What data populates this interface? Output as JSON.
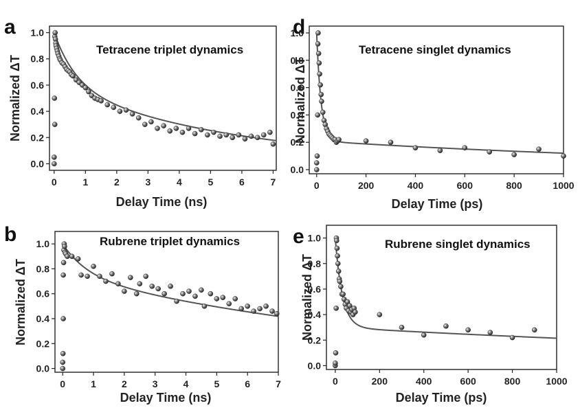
{
  "figure": {
    "colors": {
      "axis": "#222222",
      "fit": "#555555",
      "dot": "#333333",
      "dot_highlight": "#e8e8e8"
    }
  },
  "chart_data": [
    {
      "panel": "a",
      "type": "scatter",
      "annotation": "Tetracene triplet dynamics",
      "xlabel": "Delay Time (ns)",
      "ylabel": "Normalized ΔT",
      "xlim": [
        -0.15,
        7.1
      ],
      "ylim": [
        -0.05,
        1.05
      ],
      "xticks": [
        0,
        1,
        2,
        3,
        4,
        5,
        6,
        7
      ],
      "yticks": [
        0.0,
        0.2,
        0.4,
        0.6,
        0.8,
        1.0
      ],
      "fit": {
        "model": "biexp",
        "a1": 0.4,
        "t1": 0.7,
        "a2": 0.6,
        "t2": 5.8
      },
      "points": [
        [
          0.0,
          0.0
        ],
        [
          0.0,
          0.05
        ],
        [
          0.01,
          0.5
        ],
        [
          0.02,
          0.3
        ],
        [
          0.02,
          0.97
        ],
        [
          0.03,
          1.0
        ],
        [
          0.04,
          0.95
        ],
        [
          0.05,
          0.92
        ],
        [
          0.06,
          0.9
        ],
        [
          0.08,
          0.88
        ],
        [
          0.1,
          0.86
        ],
        [
          0.12,
          0.84
        ],
        [
          0.15,
          0.82
        ],
        [
          0.18,
          0.8
        ],
        [
          0.2,
          0.79
        ],
        [
          0.25,
          0.77
        ],
        [
          0.3,
          0.76
        ],
        [
          0.35,
          0.74
        ],
        [
          0.4,
          0.72
        ],
        [
          0.45,
          0.71
        ],
        [
          0.5,
          0.7
        ],
        [
          0.55,
          0.68
        ],
        [
          0.6,
          0.67
        ],
        [
          0.7,
          0.64
        ],
        [
          0.8,
          0.62
        ],
        [
          0.9,
          0.6
        ],
        [
          1.0,
          0.58
        ],
        [
          1.1,
          0.55
        ],
        [
          1.2,
          0.52
        ],
        [
          1.3,
          0.5
        ],
        [
          1.4,
          0.49
        ],
        [
          1.5,
          0.48
        ],
        [
          1.7,
          0.45
        ],
        [
          1.9,
          0.43
        ],
        [
          2.1,
          0.4
        ],
        [
          2.3,
          0.41
        ],
        [
          2.5,
          0.38
        ],
        [
          2.7,
          0.35
        ],
        [
          2.9,
          0.3
        ],
        [
          3.1,
          0.32
        ],
        [
          3.3,
          0.27
        ],
        [
          3.5,
          0.29
        ],
        [
          3.7,
          0.25
        ],
        [
          3.9,
          0.27
        ],
        [
          4.1,
          0.24
        ],
        [
          4.3,
          0.27
        ],
        [
          4.5,
          0.23
        ],
        [
          4.7,
          0.26
        ],
        [
          4.9,
          0.22
        ],
        [
          5.1,
          0.24
        ],
        [
          5.3,
          0.21
        ],
        [
          5.5,
          0.22
        ],
        [
          5.7,
          0.2
        ],
        [
          5.9,
          0.22
        ],
        [
          6.1,
          0.19
        ],
        [
          6.3,
          0.21
        ],
        [
          6.5,
          0.2
        ],
        [
          6.7,
          0.22
        ],
        [
          6.9,
          0.24
        ],
        [
          7.0,
          0.15
        ]
      ]
    },
    {
      "panel": "b",
      "type": "scatter",
      "annotation": "Rubrene triplet dynamics",
      "xlabel": "Delay Time (ns)",
      "ylabel": "Normalized ΔT",
      "xlim": [
        -0.25,
        7.0
      ],
      "ylim": [
        -0.03,
        1.1
      ],
      "xticks": [
        0,
        1,
        2,
        3,
        4,
        5,
        6,
        7
      ],
      "yticks": [
        0.0,
        0.2,
        0.4,
        0.6,
        0.8,
        1.0
      ],
      "fit": {
        "model": "biexp",
        "a1": 0.25,
        "t1": 0.8,
        "a2": 0.75,
        "t2": 12.0
      },
      "points": [
        [
          0.0,
          0.0
        ],
        [
          0.0,
          0.05
        ],
        [
          0.01,
          0.12
        ],
        [
          0.02,
          0.4
        ],
        [
          0.02,
          0.75
        ],
        [
          0.03,
          0.85
        ],
        [
          0.04,
          0.95
        ],
        [
          0.05,
          1.0
        ],
        [
          0.06,
          0.98
        ],
        [
          0.08,
          0.93
        ],
        [
          0.1,
          0.92
        ],
        [
          0.15,
          0.9
        ],
        [
          0.3,
          0.9
        ],
        [
          0.5,
          0.88
        ],
        [
          0.6,
          0.75
        ],
        [
          0.8,
          0.74
        ],
        [
          1.0,
          0.82
        ],
        [
          1.2,
          0.74
        ],
        [
          1.4,
          0.7
        ],
        [
          1.6,
          0.76
        ],
        [
          1.8,
          0.68
        ],
        [
          2.0,
          0.62
        ],
        [
          2.2,
          0.73
        ],
        [
          2.4,
          0.6
        ],
        [
          2.5,
          0.68
        ],
        [
          2.7,
          0.74
        ],
        [
          2.9,
          0.66
        ],
        [
          3.1,
          0.64
        ],
        [
          3.3,
          0.6
        ],
        [
          3.5,
          0.66
        ],
        [
          3.7,
          0.54
        ],
        [
          3.9,
          0.6
        ],
        [
          4.1,
          0.62
        ],
        [
          4.3,
          0.58
        ],
        [
          4.5,
          0.63
        ],
        [
          4.6,
          0.5
        ],
        [
          4.8,
          0.6
        ],
        [
          5.0,
          0.56
        ],
        [
          5.2,
          0.57
        ],
        [
          5.4,
          0.52
        ],
        [
          5.6,
          0.56
        ],
        [
          5.8,
          0.48
        ],
        [
          6.0,
          0.5
        ],
        [
          6.2,
          0.46
        ],
        [
          6.4,
          0.48
        ],
        [
          6.6,
          0.5
        ],
        [
          6.8,
          0.46
        ],
        [
          6.95,
          0.44
        ]
      ]
    },
    {
      "panel": "d",
      "type": "scatter",
      "annotation": "Tetracene singlet dynamics",
      "xlabel": "Delay Time (ps)",
      "ylabel": "Normalized ΔT",
      "xlim": [
        -30,
        1000
      ],
      "ylim": [
        -0.03,
        1.05
      ],
      "xticks": [
        0,
        200,
        400,
        600,
        800,
        1000
      ],
      "yticks": [
        0.0,
        0.2,
        0.4,
        0.6,
        0.8,
        1.0
      ],
      "fit": {
        "model": "biexp",
        "a1": 0.79,
        "t1": 18,
        "a2": 0.21,
        "t2": 1800
      },
      "points": [
        [
          0,
          0.0
        ],
        [
          0,
          0.05
        ],
        [
          2,
          0.1
        ],
        [
          4,
          0.4
        ],
        [
          5,
          0.92
        ],
        [
          6,
          1.0
        ],
        [
          8,
          0.85
        ],
        [
          10,
          0.78
        ],
        [
          12,
          0.7
        ],
        [
          15,
          0.62
        ],
        [
          18,
          0.55
        ],
        [
          20,
          0.5
        ],
        [
          25,
          0.42
        ],
        [
          30,
          0.36
        ],
        [
          35,
          0.33
        ],
        [
          40,
          0.3
        ],
        [
          45,
          0.28
        ],
        [
          50,
          0.26
        ],
        [
          55,
          0.25
        ],
        [
          60,
          0.24
        ],
        [
          65,
          0.23
        ],
        [
          70,
          0.22
        ],
        [
          75,
          0.22
        ],
        [
          80,
          0.2
        ],
        [
          85,
          0.21
        ],
        [
          90,
          0.22
        ],
        [
          200,
          0.21
        ],
        [
          300,
          0.2
        ],
        [
          400,
          0.16
        ],
        [
          500,
          0.14
        ],
        [
          600,
          0.16
        ],
        [
          700,
          0.13
        ],
        [
          800,
          0.11
        ],
        [
          900,
          0.15
        ],
        [
          1000,
          0.1
        ]
      ]
    },
    {
      "panel": "e",
      "type": "scatter",
      "annotation": "Rubrene singlet dynamics",
      "xlabel": "Delay Time (ps)",
      "ylabel": "Normalized ΔT",
      "xlim": [
        -40,
        1000
      ],
      "ylim": [
        -0.03,
        1.1
      ],
      "xticks": [
        0,
        200,
        400,
        600,
        800,
        1000
      ],
      "yticks": [
        0.0,
        0.2,
        0.4,
        0.6,
        0.8,
        1.0
      ],
      "fit": {
        "model": "biexp",
        "a1": 0.7,
        "t1": 32,
        "a2": 0.3,
        "t2": 3000
      },
      "points": [
        [
          0,
          0.0
        ],
        [
          0,
          0.02
        ],
        [
          2,
          0.1
        ],
        [
          4,
          0.45
        ],
        [
          5,
          1.0
        ],
        [
          6,
          0.98
        ],
        [
          8,
          0.92
        ],
        [
          10,
          0.86
        ],
        [
          12,
          0.8
        ],
        [
          15,
          0.74
        ],
        [
          18,
          0.68
        ],
        [
          20,
          0.66
        ],
        [
          25,
          0.62
        ],
        [
          30,
          0.56
        ],
        [
          35,
          0.56
        ],
        [
          40,
          0.52
        ],
        [
          45,
          0.48
        ],
        [
          50,
          0.45
        ],
        [
          55,
          0.5
        ],
        [
          60,
          0.43
        ],
        [
          65,
          0.47
        ],
        [
          70,
          0.42
        ],
        [
          75,
          0.44
        ],
        [
          80,
          0.4
        ],
        [
          85,
          0.45
        ],
        [
          90,
          0.42
        ],
        [
          200,
          0.4
        ],
        [
          300,
          0.3
        ],
        [
          400,
          0.24
        ],
        [
          500,
          0.31
        ],
        [
          600,
          0.28
        ],
        [
          700,
          0.26
        ],
        [
          800,
          0.22
        ],
        [
          900,
          0.28
        ]
      ]
    }
  ]
}
